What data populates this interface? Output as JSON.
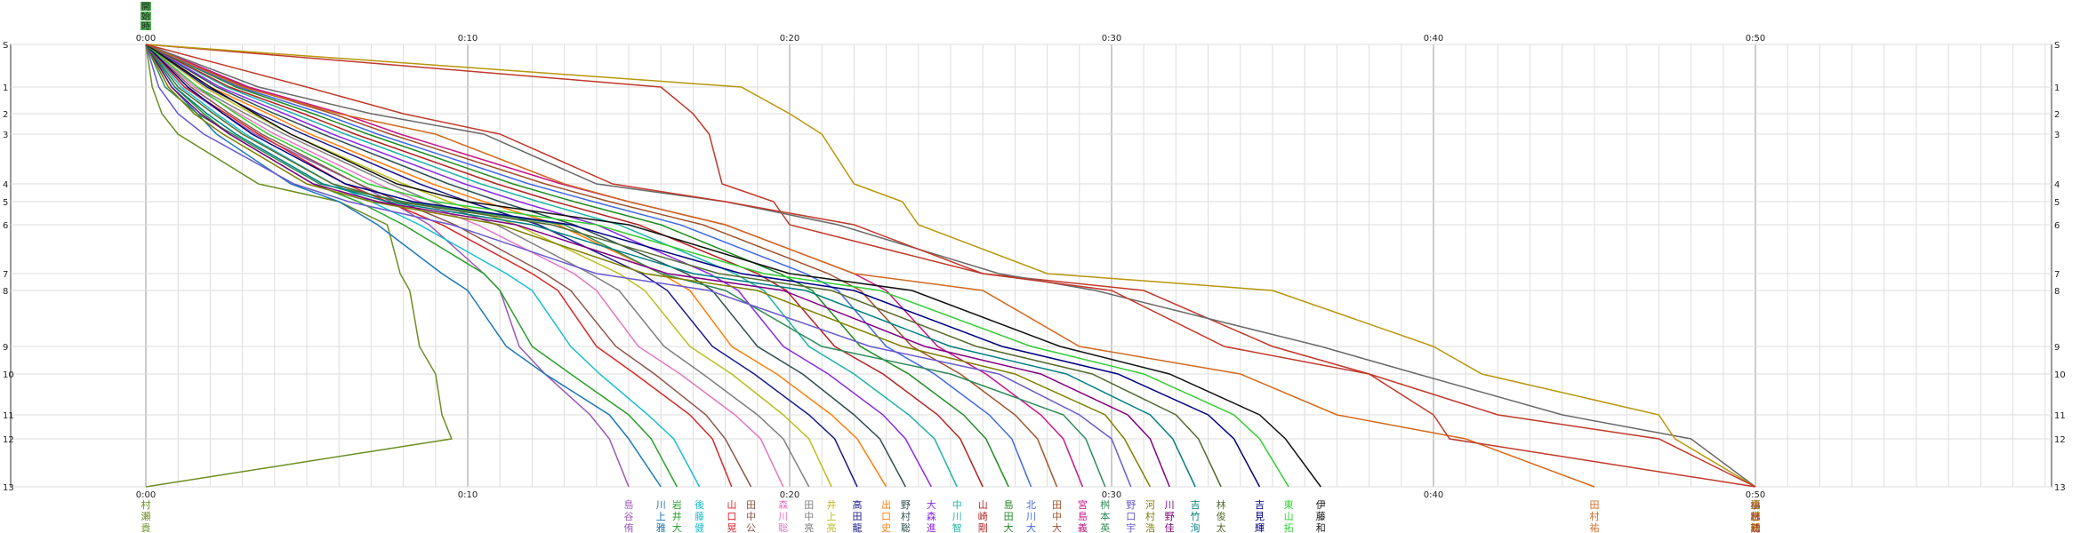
{
  "chart_data": {
    "type": "line",
    "title": "",
    "xlabel": "",
    "ylabel": "",
    "x_unit": "elapsed time (h:mm)",
    "xlim_minutes": [
      0,
      60
    ],
    "x_tick_labels": [
      "0:00",
      "0:10",
      "0:20",
      "0:30",
      "0:40",
      "0:50"
    ],
    "x_tick_values_minutes": [
      0,
      10,
      20,
      30,
      40,
      50
    ],
    "y_tick_labels": [
      "S",
      "1",
      "2",
      "3",
      "4",
      "5",
      "6",
      "7",
      "8",
      "9",
      "10",
      "11",
      "12",
      "13"
    ],
    "y_tick_values": [
      0,
      1,
      2,
      3,
      4,
      5,
      6,
      7,
      8,
      9,
      10,
      11,
      12,
      13
    ],
    "y_is_control_sequence": true,
    "grid": true,
    "legend": "names printed vertically under each line's finish time",
    "colors": {
      "grid_minor": "#dddddd",
      "grid_major": "#aaaaaa",
      "axis": "#333333",
      "marker": "#4caf50"
    },
    "start_marker_labels": [
      "開",
      "始",
      "時"
    ],
    "series": [
      {
        "name": "村瀬貴",
        "color": "#6b8e23",
        "minutes": [
          0,
          0.2,
          0.5,
          1.0,
          3.5,
          6.0,
          7.5,
          7.9,
          8.2,
          8.5,
          9.0,
          9.2,
          9.5,
          0
        ]
      },
      {
        "name": "島谷侑",
        "color": "#9b59b6",
        "minutes": [
          0,
          1.2,
          2.4,
          3.4,
          6.6,
          7.6,
          8.8,
          10.5,
          11.0,
          11.6,
          12.4,
          13.8,
          14.4,
          15.0
        ]
      },
      {
        "name": "川上雅",
        "color": "#1f77b4",
        "minutes": [
          0,
          0.8,
          1.6,
          2.2,
          4.5,
          6.0,
          7.2,
          9.2,
          10.0,
          11.2,
          12.4,
          14.4,
          15.0,
          16.0
        ]
      },
      {
        "name": "岩井大",
        "color": "#2ca02c",
        "minutes": [
          0,
          0.9,
          1.8,
          2.6,
          5.2,
          6.6,
          8.0,
          10.5,
          11.0,
          12.0,
          13.2,
          15.0,
          15.7,
          16.5
        ]
      },
      {
        "name": "後藤健",
        "color": "#17becf",
        "minutes": [
          0,
          1.1,
          2.2,
          3.1,
          5.8,
          7.0,
          8.5,
          11.2,
          12.0,
          13.2,
          14.1,
          15.6,
          16.4,
          17.2
        ]
      },
      {
        "name": "山口晃",
        "color": "#d62728",
        "minutes": [
          0,
          1.2,
          2.5,
          3.5,
          6.2,
          7.5,
          9.2,
          12.0,
          12.8,
          14.0,
          15.2,
          16.9,
          17.6,
          18.2
        ]
      },
      {
        "name": "田中公",
        "color": "#8c564b",
        "minutes": [
          0,
          1.4,
          2.6,
          3.6,
          6.6,
          7.9,
          9.6,
          12.4,
          13.2,
          14.6,
          15.8,
          17.4,
          18.0,
          18.8
        ]
      },
      {
        "name": "森川聡",
        "color": "#e377c2",
        "minutes": [
          0,
          1.5,
          2.9,
          4.0,
          7.2,
          8.5,
          10.3,
          13.3,
          14.0,
          15.3,
          16.6,
          18.3,
          19.1,
          19.8
        ]
      },
      {
        "name": "田中亮",
        "color": "#7f7f7f",
        "minutes": [
          0,
          1.6,
          3.1,
          4.3,
          7.6,
          8.9,
          10.9,
          13.8,
          14.7,
          16.1,
          17.3,
          19.0,
          19.8,
          20.6
        ]
      },
      {
        "name": "井上亮",
        "color": "#bcbd22",
        "minutes": [
          0,
          1.8,
          3.3,
          4.5,
          8.0,
          9.4,
          11.5,
          14.7,
          15.5,
          16.9,
          18.2,
          19.8,
          20.6,
          21.3
        ]
      },
      {
        "name": "高田龍",
        "color": "#1a1a8a",
        "minutes": [
          0,
          1.9,
          3.5,
          4.9,
          8.5,
          10.0,
          12.2,
          15.4,
          16.2,
          17.6,
          18.9,
          20.6,
          21.4,
          22.1
        ]
      },
      {
        "name": "出口史",
        "color": "#ff7f0e",
        "minutes": [
          0,
          2.0,
          3.8,
          5.1,
          8.9,
          10.5,
          12.8,
          16.0,
          16.9,
          18.2,
          19.6,
          21.3,
          22.1,
          23.0
        ]
      },
      {
        "name": "野村聡",
        "color": "#2f4f4f",
        "minutes": [
          0,
          2.2,
          4.0,
          5.5,
          9.4,
          11.0,
          13.3,
          16.8,
          17.6,
          19.0,
          20.4,
          22.0,
          22.8,
          23.6
        ]
      },
      {
        "name": "大森進",
        "color": "#8a2be2",
        "minutes": [
          0,
          2.3,
          4.3,
          5.8,
          9.9,
          11.6,
          14.0,
          17.5,
          18.4,
          19.8,
          21.2,
          22.9,
          23.6,
          24.4
        ]
      },
      {
        "name": "中川智",
        "color": "#20b2aa",
        "minutes": [
          0,
          2.5,
          4.6,
          6.2,
          10.4,
          12.2,
          14.7,
          18.3,
          19.2,
          20.6,
          22.0,
          23.7,
          24.5,
          25.2
        ]
      },
      {
        "name": "山崎剛",
        "color": "#b22222",
        "minutes": [
          0,
          2.6,
          4.9,
          6.5,
          10.9,
          12.7,
          15.3,
          19.0,
          19.9,
          21.4,
          22.9,
          24.6,
          25.3,
          26.0
        ]
      },
      {
        "name": "島田大",
        "color": "#228b22",
        "minutes": [
          0,
          2.8,
          5.2,
          6.9,
          11.4,
          13.3,
          16.0,
          19.7,
          20.7,
          22.2,
          23.7,
          25.4,
          26.1,
          26.8
        ]
      },
      {
        "name": "北川大",
        "color": "#4169e1",
        "minutes": [
          0,
          2.9,
          5.5,
          7.2,
          11.9,
          13.9,
          16.6,
          20.5,
          21.5,
          23.0,
          24.5,
          26.2,
          26.9,
          27.5
        ]
      },
      {
        "name": "田中大",
        "color": "#a0522d",
        "minutes": [
          0,
          3.1,
          5.8,
          7.6,
          12.4,
          14.4,
          17.3,
          21.2,
          22.2,
          23.8,
          25.3,
          27.0,
          27.7,
          28.3
        ]
      },
      {
        "name": "宮島義",
        "color": "#c71585",
        "minutes": [
          0,
          3.2,
          6.1,
          7.9,
          12.9,
          15.0,
          18.0,
          22.0,
          23.0,
          24.6,
          26.1,
          27.8,
          28.5,
          29.1
        ]
      },
      {
        "name": "桝本英",
        "color": "#2e8b57",
        "minutes": [
          0,
          0.6,
          1.6,
          2.7,
          5.4,
          8.0,
          13.0,
          16.0,
          18.0,
          21.0,
          25.0,
          28.5,
          29.2,
          29.8
        ]
      },
      {
        "name": "野口宇",
        "color": "#6a5acd",
        "minutes": [
          0,
          0.4,
          1.0,
          1.8,
          4.6,
          6.3,
          9.5,
          14.0,
          17.5,
          22.5,
          26.5,
          29.0,
          30.0,
          30.6
        ]
      },
      {
        "name": "河村浩",
        "color": "#808000",
        "minutes": [
          0,
          0.7,
          1.5,
          2.4,
          5.0,
          7.0,
          11.0,
          15.5,
          19.0,
          23.5,
          27.0,
          29.8,
          30.4,
          31.2
        ]
      },
      {
        "name": "川野佳",
        "color": "#800080",
        "minutes": [
          0,
          0.8,
          1.7,
          2.6,
          5.2,
          7.2,
          11.5,
          16.2,
          19.8,
          24.2,
          27.8,
          30.5,
          31.2,
          31.8
        ]
      },
      {
        "name": "吉竹洵",
        "color": "#008080",
        "minutes": [
          0,
          0.9,
          1.9,
          2.8,
          5.5,
          7.5,
          12.0,
          17.0,
          20.5,
          25.0,
          28.6,
          31.2,
          31.9,
          32.6
        ]
      },
      {
        "name": "林俊太",
        "color": "#556b2f",
        "minutes": [
          0,
          1.0,
          2.1,
          3.0,
          5.8,
          7.8,
          12.6,
          17.8,
          21.3,
          25.8,
          29.4,
          32.0,
          32.7,
          33.4
        ]
      },
      {
        "name": "吉見輝",
        "color": "#000080",
        "minutes": [
          0,
          1.3,
          2.4,
          3.3,
          6.2,
          8.3,
          13.2,
          18.5,
          22.0,
          26.6,
          30.2,
          33.0,
          33.8,
          34.6
        ]
      },
      {
        "name": "東山拓",
        "color": "#32cd32",
        "minutes": [
          0,
          1.6,
          2.8,
          3.8,
          6.9,
          9.0,
          14.0,
          19.2,
          22.8,
          27.5,
          31.0,
          33.8,
          34.6,
          35.5
        ]
      },
      {
        "name": "伊藤和",
        "color": "#111111",
        "minutes": [
          0,
          2.0,
          3.4,
          4.5,
          7.8,
          10.0,
          15.0,
          20.0,
          23.8,
          28.4,
          31.8,
          34.6,
          35.4,
          36.5
        ]
      },
      {
        "name": "田村祐",
        "color": "#d2691e",
        "minutes": [
          0,
          3.0,
          6.0,
          9.0,
          13.0,
          15.0,
          18.0,
          22.0,
          26.0,
          29.0,
          34.0,
          37.0,
          41.0,
          45.0
        ]
      },
      {
        "name": "福田元",
        "color": "#c0392b",
        "minutes": [
          0,
          16.0,
          17.0,
          17.5,
          17.9,
          19.5,
          20.0,
          26.0,
          31.0,
          35.0,
          38.0,
          40.0,
          40.5,
          50.0
        ]
      },
      {
        "name": "清水誠",
        "color": "#696969",
        "minutes": [
          0,
          3.5,
          7.0,
          10.5,
          14.0,
          18.0,
          21.5,
          26.5,
          29.5,
          36.5,
          39.5,
          44.0,
          48.0,
          50.0
        ]
      },
      {
        "name": "星野朋",
        "color": "#b8960b",
        "minutes": [
          0,
          18.5,
          20.0,
          21.0,
          22.0,
          23.5,
          24.0,
          28.0,
          35.0,
          40.0,
          41.5,
          47.0,
          47.5,
          50.0
        ]
      },
      {
        "name": "小林功",
        "color": "#c0392b",
        "minutes": [
          0,
          5.0,
          8.0,
          11.0,
          14.5,
          18.0,
          22.0,
          26.0,
          30.0,
          33.5,
          38.0,
          42.0,
          47.0,
          50.0
        ]
      }
    ]
  }
}
